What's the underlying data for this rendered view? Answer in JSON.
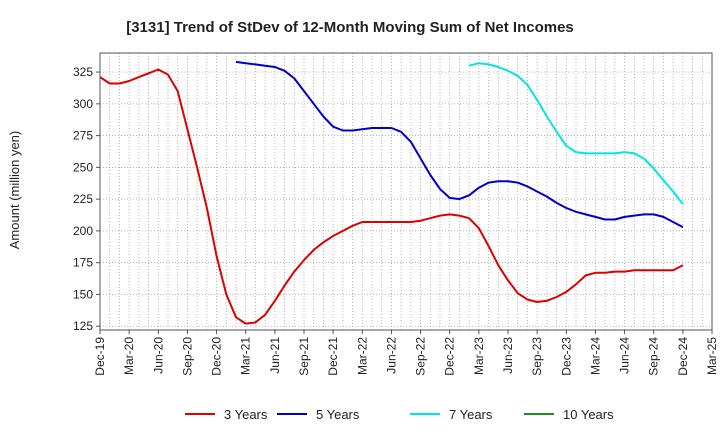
{
  "chart_data": {
    "type": "line",
    "title": "[3131]  Trend of StDev of 12-Month Moving Sum of Net Incomes",
    "xlabel": "",
    "ylabel": "Amount (million yen)",
    "x_ticks": [
      "Dec-19",
      "Mar-20",
      "Jun-20",
      "Sep-20",
      "Dec-20",
      "Mar-21",
      "Jun-21",
      "Sep-21",
      "Dec-21",
      "Mar-22",
      "Jun-22",
      "Sep-22",
      "Dec-22",
      "Mar-23",
      "Jun-23",
      "Sep-23",
      "Dec-23",
      "Mar-24",
      "Jun-24",
      "Sep-24",
      "Dec-24",
      "Mar-25"
    ],
    "y_ticks": [
      125,
      150,
      175,
      200,
      225,
      250,
      275,
      300,
      325
    ],
    "ylim": [
      122,
      340
    ],
    "grid": true,
    "legend_position": "bottom",
    "series": [
      {
        "name": "3 Years",
        "color": "#dd0000",
        "x": [
          "2019-12",
          "2020-01",
          "2020-02",
          "2020-03",
          "2020-04",
          "2020-05",
          "2020-06",
          "2020-07",
          "2020-08",
          "2020-09",
          "2020-10",
          "2020-11",
          "2020-12",
          "2021-01",
          "2021-02",
          "2021-03",
          "2021-04",
          "2021-05",
          "2021-06",
          "2021-07",
          "2021-08",
          "2021-09",
          "2021-10",
          "2021-11",
          "2021-12",
          "2022-01",
          "2022-02",
          "2022-03",
          "2022-04",
          "2022-05",
          "2022-06",
          "2022-07",
          "2022-08",
          "2022-09",
          "2022-10",
          "2022-11",
          "2022-12",
          "2023-01",
          "2023-02",
          "2023-03",
          "2023-04",
          "2023-05",
          "2023-06",
          "2023-07",
          "2023-08",
          "2023-09",
          "2023-10",
          "2023-11",
          "2023-12",
          "2024-01",
          "2024-02",
          "2024-03",
          "2024-04",
          "2024-05",
          "2024-06",
          "2024-07",
          "2024-08",
          "2024-09",
          "2024-10",
          "2024-11",
          "2024-12"
        ],
        "values": [
          321,
          316,
          316,
          318,
          321,
          324,
          327,
          323,
          310,
          280,
          250,
          218,
          180,
          150,
          132,
          127,
          128,
          134,
          145,
          157,
          168,
          177,
          185,
          191,
          196,
          200,
          204,
          207,
          207,
          207,
          207,
          207,
          207,
          208,
          210,
          212,
          213,
          212,
          210,
          202,
          188,
          173,
          161,
          151,
          146,
          144,
          145,
          148,
          152,
          158,
          165,
          167,
          167,
          168,
          168,
          169,
          169,
          169,
          169,
          169,
          173
        ]
      },
      {
        "name": "5 Years",
        "color": "#0000cc",
        "x": [
          "2021-02",
          "2021-03",
          "2021-04",
          "2021-05",
          "2021-06",
          "2021-07",
          "2021-08",
          "2021-09",
          "2021-10",
          "2021-11",
          "2021-12",
          "2022-01",
          "2022-02",
          "2022-03",
          "2022-04",
          "2022-05",
          "2022-06",
          "2022-07",
          "2022-08",
          "2022-09",
          "2022-10",
          "2022-11",
          "2022-12",
          "2023-01",
          "2023-02",
          "2023-03",
          "2023-04",
          "2023-05",
          "2023-06",
          "2023-07",
          "2023-08",
          "2023-09",
          "2023-10",
          "2023-11",
          "2023-12",
          "2024-01",
          "2024-02",
          "2024-03",
          "2024-04",
          "2024-05",
          "2024-06",
          "2024-07",
          "2024-08",
          "2024-09",
          "2024-10",
          "2024-11",
          "2024-12"
        ],
        "values": [
          333,
          332,
          331,
          330,
          329,
          326,
          320,
          310,
          300,
          290,
          282,
          279,
          279,
          280,
          281,
          281,
          281,
          278,
          270,
          257,
          244,
          233,
          226,
          225,
          228,
          234,
          238,
          239,
          239,
          238,
          235,
          231,
          227,
          222,
          218,
          215,
          213,
          211,
          209,
          209,
          211,
          212,
          213,
          213,
          211,
          207,
          203
        ]
      },
      {
        "name": "7 Years",
        "color": "#00e5e5",
        "x": [
          "2023-02",
          "2023-03",
          "2023-04",
          "2023-05",
          "2023-06",
          "2023-07",
          "2023-08",
          "2023-09",
          "2023-10",
          "2023-11",
          "2023-12",
          "2024-01",
          "2024-02",
          "2024-03",
          "2024-04",
          "2024-05",
          "2024-06",
          "2024-07",
          "2024-08",
          "2024-09",
          "2024-10",
          "2024-11",
          "2024-12"
        ],
        "values": [
          330,
          332,
          331,
          329,
          326,
          322,
          315,
          303,
          290,
          278,
          267,
          262,
          261,
          261,
          261,
          261,
          262,
          261,
          257,
          249,
          240,
          231,
          221
        ]
      },
      {
        "name": "10 Years",
        "color": "#228b22",
        "x": [],
        "values": []
      }
    ]
  }
}
